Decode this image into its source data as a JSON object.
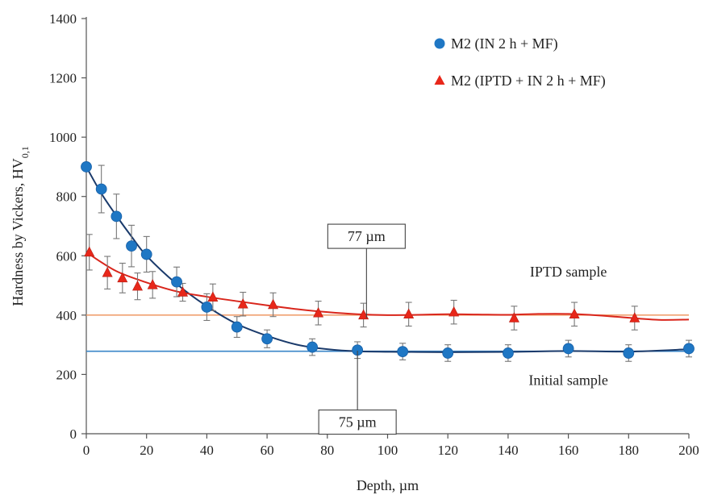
{
  "chart_data": {
    "type": "scatter",
    "xlabel": "Depth, µm",
    "ylabel": "Hardness by Vickers, HV",
    "ylabel_sub": "0,1",
    "xlim": [
      0,
      200
    ],
    "ylim": [
      0,
      1400
    ],
    "x_ticks": [
      0,
      20,
      40,
      60,
      80,
      100,
      120,
      140,
      160,
      180,
      200
    ],
    "y_ticks": [
      0,
      200,
      400,
      600,
      800,
      1000,
      1200,
      1400
    ],
    "grid": false,
    "legend_position": "top-right",
    "series": [
      {
        "name": "M2 (IN 2 h + MF)",
        "marker": "circle",
        "color": "#1f77c4",
        "line_color": "#1a3a6b",
        "points": [
          {
            "x": 0,
            "y": 900,
            "err": 0
          },
          {
            "x": 5,
            "y": 825,
            "err": 80
          },
          {
            "x": 10,
            "y": 733,
            "err": 75
          },
          {
            "x": 15,
            "y": 633,
            "err": 70
          },
          {
            "x": 20,
            "y": 605,
            "err": 60
          },
          {
            "x": 30,
            "y": 512,
            "err": 50
          },
          {
            "x": 40,
            "y": 427,
            "err": 45
          },
          {
            "x": 50,
            "y": 360,
            "err": 35
          },
          {
            "x": 60,
            "y": 320,
            "err": 30
          },
          {
            "x": 75,
            "y": 292,
            "err": 28
          },
          {
            "x": 90,
            "y": 282,
            "err": 28
          },
          {
            "x": 105,
            "y": 277,
            "err": 28
          },
          {
            "x": 120,
            "y": 272,
            "err": 28
          },
          {
            "x": 140,
            "y": 272,
            "err": 28
          },
          {
            "x": 160,
            "y": 287,
            "err": 28
          },
          {
            "x": 180,
            "y": 272,
            "err": 28
          },
          {
            "x": 200,
            "y": 287,
            "err": 28
          }
        ],
        "trend": [
          [
            0,
            900
          ],
          [
            5,
            810
          ],
          [
            10,
            735
          ],
          [
            15,
            665
          ],
          [
            20,
            600
          ],
          [
            30,
            505
          ],
          [
            40,
            430
          ],
          [
            50,
            370
          ],
          [
            60,
            330
          ],
          [
            70,
            300
          ],
          [
            80,
            285
          ],
          [
            90,
            278
          ],
          [
            105,
            276
          ],
          [
            120,
            275
          ],
          [
            140,
            276
          ],
          [
            160,
            279
          ],
          [
            180,
            277
          ],
          [
            200,
            285
          ]
        ]
      },
      {
        "name": "M2 (IPTD + IN 2 h + MF)",
        "marker": "triangle",
        "color": "#e8271a",
        "line_color": "#d9261c",
        "points": [
          {
            "x": 1,
            "y": 612,
            "err": 60
          },
          {
            "x": 7,
            "y": 543,
            "err": 55
          },
          {
            "x": 12,
            "y": 525,
            "err": 50
          },
          {
            "x": 17,
            "y": 497,
            "err": 45
          },
          {
            "x": 22,
            "y": 502,
            "err": 45
          },
          {
            "x": 32,
            "y": 477,
            "err": 30
          },
          {
            "x": 42,
            "y": 460,
            "err": 45
          },
          {
            "x": 52,
            "y": 437,
            "err": 40
          },
          {
            "x": 62,
            "y": 435,
            "err": 40
          },
          {
            "x": 77,
            "y": 407,
            "err": 40
          },
          {
            "x": 92,
            "y": 400,
            "err": 40
          },
          {
            "x": 107,
            "y": 403,
            "err": 40
          },
          {
            "x": 122,
            "y": 410,
            "err": 40
          },
          {
            "x": 142,
            "y": 390,
            "err": 40
          },
          {
            "x": 162,
            "y": 403,
            "err": 40
          },
          {
            "x": 182,
            "y": 390,
            "err": 40
          }
        ],
        "trend": [
          [
            1,
            605
          ],
          [
            10,
            548
          ],
          [
            20,
            510
          ],
          [
            30,
            480
          ],
          [
            40,
            462
          ],
          [
            50,
            447
          ],
          [
            60,
            433
          ],
          [
            70,
            420
          ],
          [
            80,
            410
          ],
          [
            90,
            403
          ],
          [
            100,
            400
          ],
          [
            110,
            401
          ],
          [
            120,
            403
          ],
          [
            130,
            402
          ],
          [
            140,
            401
          ],
          [
            150,
            404
          ],
          [
            160,
            404
          ],
          [
            170,
            399
          ],
          [
            180,
            391
          ],
          [
            190,
            384
          ],
          [
            200,
            385
          ]
        ]
      }
    ],
    "reference_lines": [
      {
        "y": 400,
        "color": "#f0a070"
      },
      {
        "y": 278,
        "color": "#3a86c8"
      }
    ],
    "annotations": [
      {
        "text": "77 µm",
        "x": 93,
        "y_from": 390,
        "y_to": 625
      },
      {
        "text": "75 µm",
        "x": 90,
        "y_from": 280,
        "y_to": 80
      },
      {
        "text": "IPTD sample",
        "x": 160,
        "y": 530
      },
      {
        "text": "Initial sample",
        "x": 160,
        "y": 165
      }
    ]
  }
}
